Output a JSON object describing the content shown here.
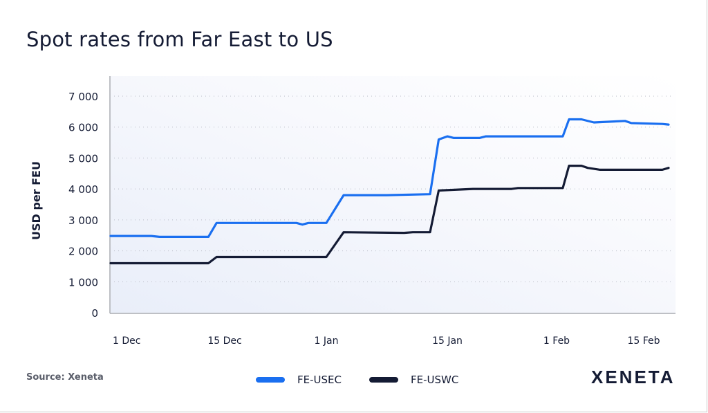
{
  "chart_data": {
    "type": "line",
    "title": "Spot rates from Far East to US",
    "ylabel": "USD per FEU",
    "xlabel": "",
    "ylim": [
      0,
      7000
    ],
    "yticks": [
      "0",
      "1 000",
      "2 000",
      "3 000",
      "4 000",
      "5 000",
      "6 000",
      "7 000"
    ],
    "ytick_values": [
      0,
      1000,
      2000,
      3000,
      4000,
      5000,
      6000,
      7000
    ],
    "xticks": [
      "1 Dec",
      "15 Dec",
      "1 Jan",
      "15 Jan",
      "1 Feb",
      "15 Feb"
    ],
    "xtick_dates": [
      "12-01",
      "12-15",
      "01-01",
      "01-15",
      "02-01",
      "02-15"
    ],
    "grid": "horizontal dotted",
    "legend_position": "bottom",
    "series": [
      {
        "name": "FE-USEC",
        "color": "#1a6ff0",
        "points": [
          [
            "12-01",
            2480
          ],
          [
            "12-06",
            2480
          ],
          [
            "12-07",
            2450
          ],
          [
            "12-13",
            2450
          ],
          [
            "12-14",
            2900
          ],
          [
            "12-27",
            2900
          ],
          [
            "12-28",
            2850
          ],
          [
            "12-29",
            2900
          ],
          [
            "01-01",
            2900
          ],
          [
            "01-03",
            3800
          ],
          [
            "01-08",
            3800
          ],
          [
            "01-13",
            3830
          ],
          [
            "01-14",
            5600
          ],
          [
            "01-15",
            5700
          ],
          [
            "01-16",
            5650
          ],
          [
            "01-20",
            5650
          ],
          [
            "01-21",
            5700
          ],
          [
            "02-02",
            5700
          ],
          [
            "02-03",
            6250
          ],
          [
            "02-05",
            6250
          ],
          [
            "02-07",
            6150
          ],
          [
            "02-12",
            6200
          ],
          [
            "02-13",
            6130
          ],
          [
            "02-18",
            6100
          ],
          [
            "02-19",
            6080
          ]
        ]
      },
      {
        "name": "FE-USWC",
        "color": "#141b34",
        "points": [
          [
            "12-01",
            1600
          ],
          [
            "12-13",
            1600
          ],
          [
            "12-14",
            1800
          ],
          [
            "01-01",
            1800
          ],
          [
            "01-03",
            2600
          ],
          [
            "01-10",
            2580
          ],
          [
            "01-11",
            2600
          ],
          [
            "01-13",
            2600
          ],
          [
            "01-14",
            3950
          ],
          [
            "01-19",
            4000
          ],
          [
            "01-25",
            4000
          ],
          [
            "01-26",
            4030
          ],
          [
            "02-02",
            4030
          ],
          [
            "02-03",
            4750
          ],
          [
            "02-05",
            4750
          ],
          [
            "02-06",
            4680
          ],
          [
            "02-08",
            4620
          ],
          [
            "02-18",
            4620
          ],
          [
            "02-19",
            4680
          ]
        ]
      }
    ]
  },
  "footer": {
    "source": "Source: Xeneta",
    "logo_text": "XENETA"
  }
}
